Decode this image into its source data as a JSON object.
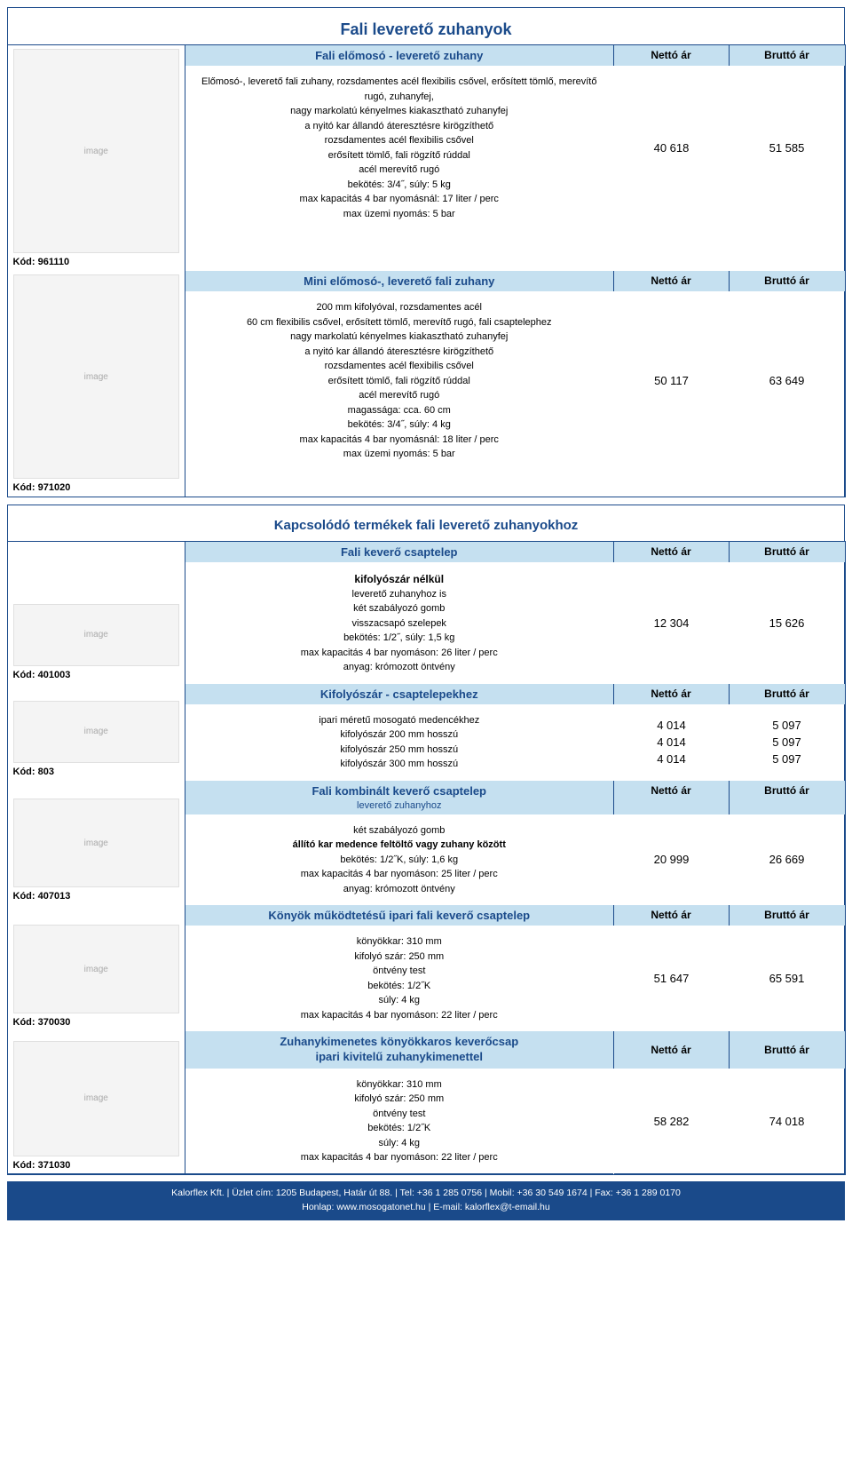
{
  "colors": {
    "border": "#1a4a8a",
    "headerBg": "#c5e0f0",
    "titleText": "#1a4a8a"
  },
  "hdr": {
    "netto": "Nettó ár",
    "brutto": "Bruttó ár"
  },
  "sec1": {
    "title": "Fali leverető zuhanyok",
    "p1": {
      "kod": "Kód: 961110",
      "label": "Fali előmosó - leverető zuhany",
      "lines": [
        "Előmosó-, leverető fali zuhany, rozsdamentes acél flexibilis csővel, erősített tömlő, merevítő",
        "rugó, zuhanyfej,",
        "nagy markolatú kényelmes kiakasztható zuhanyfej",
        "a nyitó kar állandó áteresztésre kirögzíthető",
        "rozsdamentes acél flexibilis csővel",
        "erősített tömlő, fali rögzítő rúddal",
        "acél merevítő rugó",
        "bekötés: 3/4˝, súly: 5 kg",
        "max kapacitás 4 bar nyomásnál: 17 liter / perc",
        "max üzemi nyomás: 5 bar"
      ],
      "net": "40 618",
      "gross": "51 585"
    },
    "p2": {
      "kod": "Kód: 971020",
      "label": "Mini előmosó-, leverető fali zuhany",
      "lines": [
        "200 mm kifolyóval, rozsdamentes acél",
        "60 cm flexibilis csővel, erősített tömlő, merevítő rugó, fali csaptelephez",
        "nagy markolatú kényelmes kiakasztható zuhanyfej",
        "a nyitó kar állandó áteresztésre kirögzíthető",
        "rozsdamentes acél flexibilis csővel",
        "erősített tömlő, fali rögzítő rúddal",
        "acél merevítő rugó",
        "magassága: cca. 60 cm",
        "bekötés: 3/4˝,  súly: 4 kg",
        "max kapacitás 4 bar nyomásnál: 18 liter / perc",
        "max üzemi nyomás: 5 bar"
      ],
      "net": "50 117",
      "gross": "63 649"
    }
  },
  "sec2": {
    "title": "Kapcsolódó termékek fali leverető zuhanyokhoz",
    "p1": {
      "kod": "Kód: 401003",
      "label": "Fali keverő csaptelep",
      "subtitle": "kifolyószár nélkül",
      "lines": [
        "leverető zuhanyhoz is",
        "két szabályozó gomb",
        "visszacsapó szelepek",
        "bekötés: 1/2˝, súly: 1,5 kg",
        "max kapacitás 4 bar nyomáson: 26 liter / perc",
        "anyag: krómozott öntvény"
      ],
      "net": "12 304",
      "gross": "15 626"
    },
    "p2": {
      "kod": "Kód: 803",
      "label": "Kifolyószár - csaptelepekhez",
      "lines": [
        "ipari méretű mosogató medencékhez",
        "kifolyószár 200 mm hosszú",
        "kifolyószár 250 mm hosszú",
        "kifolyószár 300 mm hosszú"
      ],
      "net": [
        "4 014",
        "4 014",
        "4 014"
      ],
      "gross": [
        "5 097",
        "5 097",
        "5 097"
      ]
    },
    "p3": {
      "kod": "Kód: 407013",
      "label": "Fali kombinált keverő csaptelep",
      "sub2": "leverető zuhanyhoz",
      "lines": [
        "két szabályozó gomb",
        "állító kar medence feltöltő vagy zuhany között",
        "bekötés: 1/2˝K, súly: 1,6 kg",
        "max kapacitás 4 bar nyomáson: 25 liter / perc",
        "anyag: krómozott öntvény"
      ],
      "boldIdx": 1,
      "net": "20 999",
      "gross": "26 669"
    },
    "p4": {
      "kod": "Kód: 370030",
      "label": "Könyök működtetésű ipari fali keverő csaptelep",
      "lines": [
        "könyökkar: 310 mm",
        "kifolyó szár: 250 mm",
        "öntvény test",
        "bekötés: 1/2˝K",
        "súly: 4 kg",
        "max kapacitás 4 bar nyomáson: 22 liter / perc"
      ],
      "net": "51 647",
      "gross": "65 591"
    },
    "p5": {
      "kod": "Kód: 371030",
      "label1": "Zuhanykimenetes könyökkaros keverőcsap",
      "label2": "ipari kivitelű zuhanykimenettel",
      "lines": [
        "könyökkar: 310 mm",
        "kifolyó szár: 250 mm",
        "öntvény test",
        "bekötés: 1/2˝K",
        "súly: 4 kg",
        "max kapacitás 4 bar nyomáson: 22 liter / perc"
      ],
      "net": "58 282",
      "gross": "74 018"
    }
  },
  "footer": {
    "l1": "Kalorflex Kft.  |  Üzlet cím: 1205 Budapest, Határ út 88.  |  Tel: +36 1 285 0756  |  Mobil: +36 30 549 1674  |  Fax: +36 1 289 0170",
    "l2": "Honlap: www.mosogatonet.hu  |  E-mail: kalorflex@t-email.hu"
  }
}
